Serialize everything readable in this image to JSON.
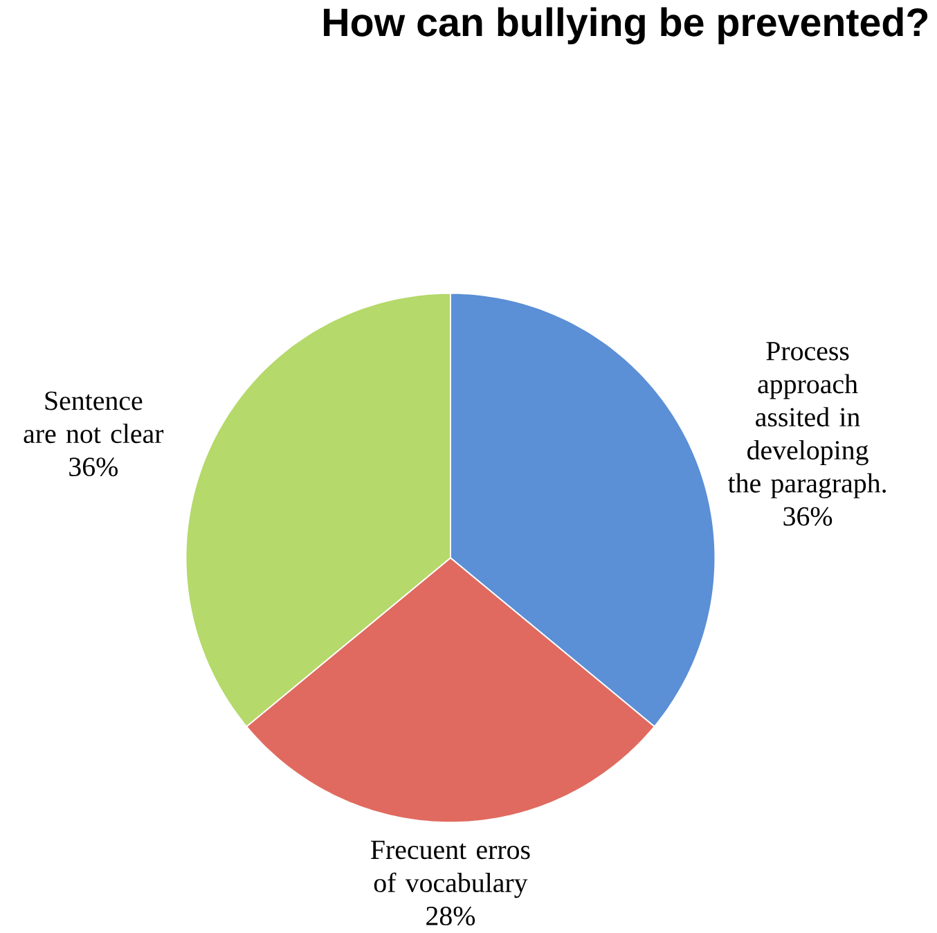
{
  "chart_data": {
    "type": "pie",
    "title": "How can bullying be prevented?",
    "categories": [
      "Process approach assited in developing the paragraph.",
      "Frecuent erros of vocabulary",
      "Sentence are not clear"
    ],
    "values": [
      36,
      28,
      36
    ],
    "colors": [
      "#5b8fd6",
      "#e06a5f",
      "#b5d96a"
    ],
    "value_labels": [
      "36%",
      "28%",
      "36%"
    ]
  }
}
